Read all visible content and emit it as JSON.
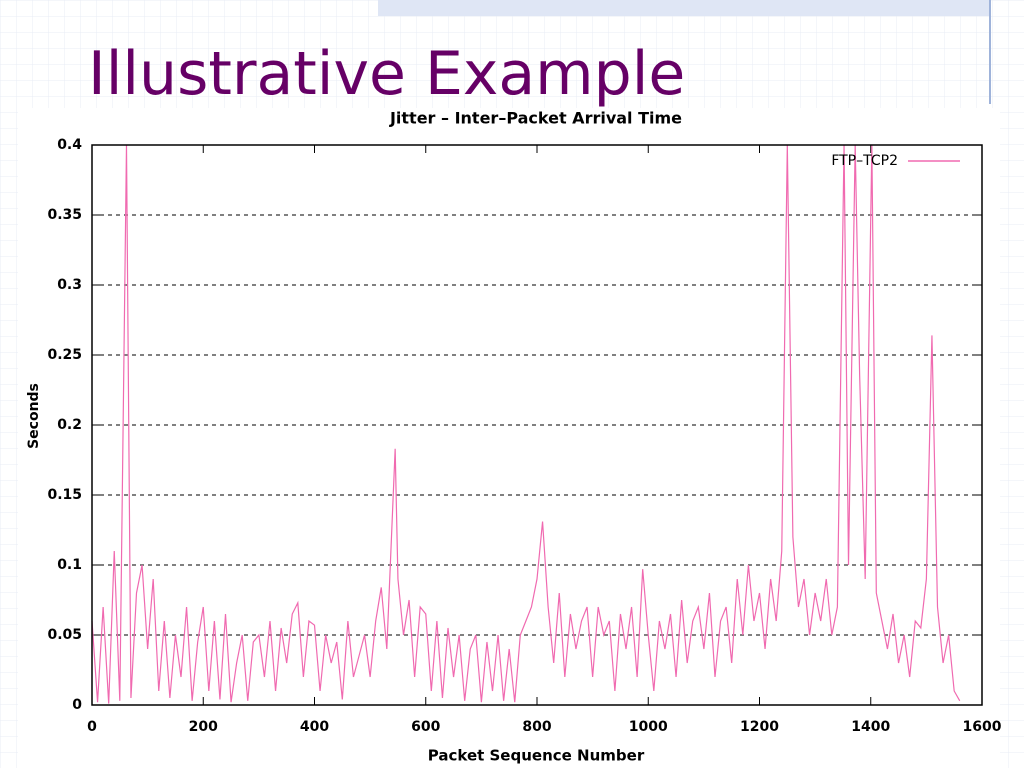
{
  "slide": {
    "title": "Illustrative Example"
  },
  "chart_data": {
    "type": "line",
    "title": "Jitter – Inter–Packet Arrival Time",
    "x_label": "Packet Sequence Number",
    "y_label": "Seconds",
    "xlim": [
      0,
      1600
    ],
    "ylim": [
      0,
      0.4
    ],
    "xticks": [
      0,
      200,
      400,
      600,
      800,
      1000,
      1200,
      1400,
      1600
    ],
    "yticks": [
      0,
      0.05,
      0.1,
      0.15,
      0.2,
      0.25,
      0.3,
      0.35,
      0.4
    ],
    "grid": true,
    "legend": "top-right",
    "x": [
      0,
      10,
      20,
      30,
      40,
      50,
      62,
      70,
      80,
      90,
      100,
      110,
      120,
      130,
      140,
      150,
      160,
      170,
      180,
      190,
      200,
      210,
      220,
      230,
      240,
      250,
      260,
      270,
      280,
      290,
      300,
      310,
      320,
      330,
      340,
      350,
      360,
      370,
      380,
      390,
      400,
      410,
      420,
      430,
      440,
      450,
      460,
      470,
      480,
      490,
      500,
      510,
      520,
      530,
      545,
      550,
      560,
      570,
      580,
      590,
      600,
      610,
      620,
      630,
      640,
      650,
      660,
      670,
      680,
      690,
      700,
      710,
      720,
      730,
      740,
      750,
      760,
      770,
      780,
      790,
      800,
      810,
      820,
      830,
      840,
      850,
      860,
      870,
      880,
      890,
      900,
      910,
      920,
      930,
      940,
      950,
      960,
      970,
      980,
      990,
      1000,
      1010,
      1020,
      1030,
      1040,
      1050,
      1060,
      1070,
      1080,
      1090,
      1100,
      1110,
      1120,
      1130,
      1140,
      1150,
      1160,
      1170,
      1180,
      1190,
      1200,
      1210,
      1220,
      1230,
      1240,
      1250,
      1260,
      1270,
      1280,
      1290,
      1300,
      1310,
      1320,
      1330,
      1340,
      1352,
      1360,
      1372,
      1380,
      1390,
      1402,
      1410,
      1420,
      1430,
      1440,
      1450,
      1460,
      1470,
      1480,
      1490,
      1500,
      1510,
      1520,
      1530,
      1540,
      1550,
      1560
    ],
    "series": [
      {
        "name": "FTP–TCP2",
        "color": "#f06ab0",
        "values": [
          0.06,
          0.002,
          0.07,
          0.001,
          0.11,
          0.003,
          0.4,
          0.005,
          0.08,
          0.1,
          0.04,
          0.09,
          0.01,
          0.06,
          0.005,
          0.05,
          0.02,
          0.07,
          0.003,
          0.045,
          0.07,
          0.01,
          0.06,
          0.004,
          0.065,
          0.002,
          0.03,
          0.05,
          0.003,
          0.045,
          0.05,
          0.02,
          0.06,
          0.01,
          0.055,
          0.03,
          0.065,
          0.073,
          0.02,
          0.06,
          0.057,
          0.01,
          0.05,
          0.03,
          0.045,
          0.004,
          0.06,
          0.02,
          0.035,
          0.05,
          0.02,
          0.06,
          0.084,
          0.04,
          0.183,
          0.09,
          0.05,
          0.075,
          0.02,
          0.07,
          0.065,
          0.01,
          0.06,
          0.005,
          0.055,
          0.02,
          0.05,
          0.003,
          0.04,
          0.05,
          0.002,
          0.045,
          0.01,
          0.05,
          0.003,
          0.04,
          0.002,
          0.05,
          0.06,
          0.07,
          0.09,
          0.131,
          0.07,
          0.03,
          0.08,
          0.02,
          0.065,
          0.04,
          0.06,
          0.07,
          0.02,
          0.07,
          0.05,
          0.06,
          0.01,
          0.065,
          0.04,
          0.07,
          0.02,
          0.097,
          0.05,
          0.01,
          0.06,
          0.04,
          0.065,
          0.02,
          0.075,
          0.03,
          0.06,
          0.07,
          0.04,
          0.08,
          0.02,
          0.06,
          0.07,
          0.03,
          0.09,
          0.05,
          0.1,
          0.06,
          0.08,
          0.04,
          0.09,
          0.06,
          0.11,
          0.4,
          0.12,
          0.07,
          0.09,
          0.05,
          0.08,
          0.06,
          0.09,
          0.05,
          0.07,
          0.4,
          0.1,
          0.4,
          0.236,
          0.09,
          0.4,
          0.08,
          0.06,
          0.04,
          0.065,
          0.03,
          0.05,
          0.02,
          0.06,
          0.055,
          0.09,
          0.264,
          0.07,
          0.03,
          0.05,
          0.01,
          0.003
        ]
      }
    ]
  }
}
